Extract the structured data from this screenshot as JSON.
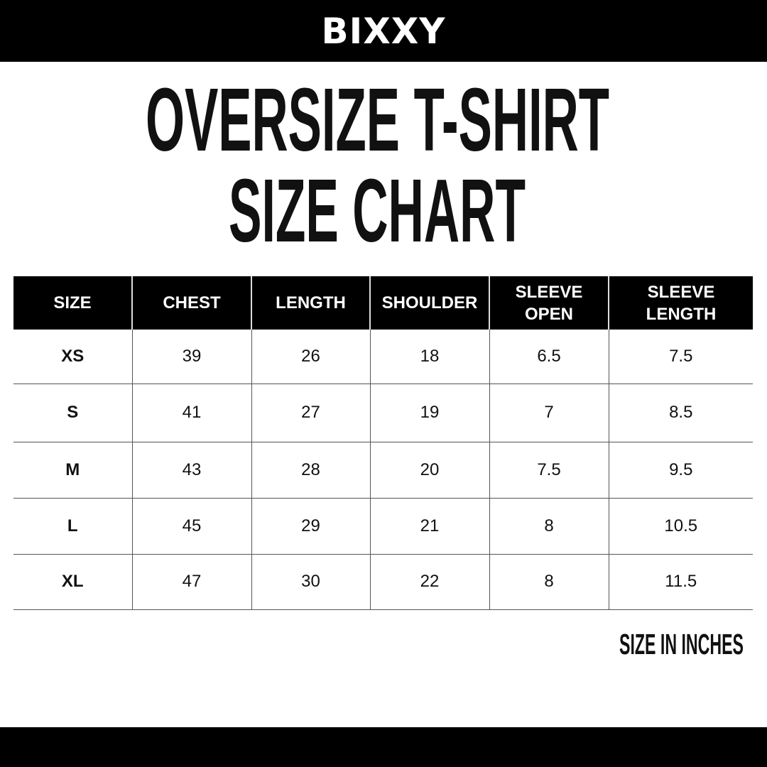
{
  "brand": {
    "logo_text": "BIXXY"
  },
  "title": {
    "line1": "OVERSIZE T-SHIRT",
    "line2": "SIZE CHART"
  },
  "table": {
    "headers": [
      "SIZE",
      "CHEST",
      "LENGTH",
      "SHOULDER",
      "SLEEVE OPEN",
      "SLEEVE LENGTH"
    ],
    "rows": [
      [
        "XS",
        "39",
        "26",
        "18",
        "6.5",
        "7.5"
      ],
      [
        "S",
        "41",
        "27",
        "19",
        "7",
        "8.5"
      ],
      [
        "M",
        "43",
        "28",
        "20",
        "7.5",
        "9.5"
      ],
      [
        "L",
        "45",
        "29",
        "21",
        "8",
        "10.5"
      ],
      [
        "XL",
        "47",
        "30",
        "22",
        "8",
        "11.5"
      ]
    ]
  },
  "note": "SIZE IN INCHES",
  "colors": {
    "bar": "#000000",
    "text": "#111111",
    "grid": "#555555"
  }
}
